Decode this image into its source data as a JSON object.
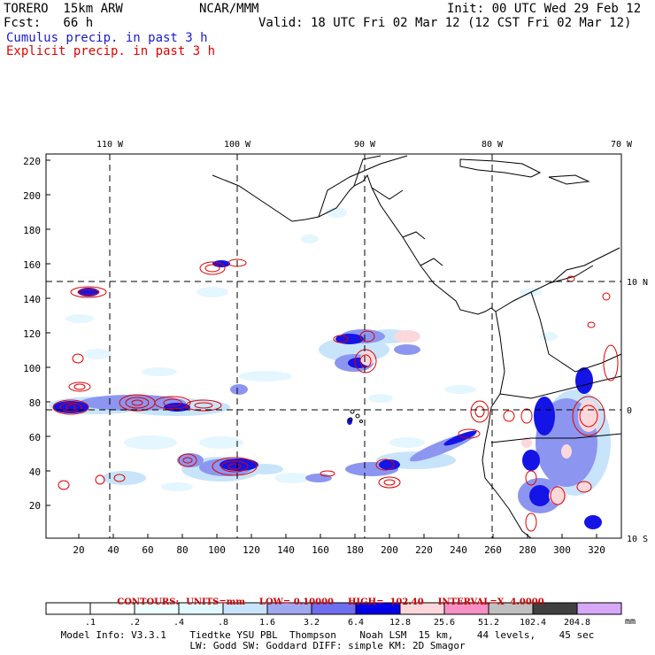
{
  "header": {
    "model": "TORERO  15km ARW",
    "org": "NCAR/MMM",
    "init": "Init: 00 UTC Wed 29 Feb 12",
    "fcst": "Fcst:   66 h",
    "valid": "Valid: 18 UTC Fri 02 Mar 12 (12 CST Fri 02 Mar 12)",
    "cumulus_label": "Cumulus precip. in past 3 h",
    "explicit_label": "Explicit precip. in past 3 h"
  },
  "colors": {
    "cumulus_text": "#1a1acc",
    "explicit_text": "#e00000",
    "explicit_contour": "#e00000",
    "land_outline": "#000000"
  },
  "map": {
    "longitude_labels": [
      "110 W",
      "100 W",
      "90 W",
      "80 W",
      "70 W"
    ],
    "latitude_labels": [
      "10 N",
      "0",
      "10 S"
    ],
    "y_ticks": [
      "20",
      "40",
      "60",
      "80",
      "100",
      "120",
      "140",
      "160",
      "180",
      "200",
      "220"
    ],
    "x_ticks": [
      "20",
      "40",
      "60",
      "80",
      "100",
      "120",
      "140",
      "160",
      "180",
      "200",
      "220",
      "240",
      "260",
      "280",
      "300",
      "320"
    ]
  },
  "contours": {
    "title": "CONTOURS:",
    "units": "UNITS=mm",
    "low": "LOW= 0.10000",
    "high": "HIGH=  102.40",
    "interval": "INTERVAL=X  4.0000"
  },
  "colorbar": {
    "unit": "mm",
    "labels": [
      ".1",
      ".2",
      ".4",
      ".8",
      "1.6",
      "3.2",
      "6.4",
      "12.8",
      "25.6",
      "51.2",
      "102.4",
      "204.8"
    ],
    "colors": [
      "#ffffff",
      "#ffffff",
      "#eeffff",
      "#e0f8ff",
      "#c8e4fa",
      "#a0a8f0",
      "#6e6ef0",
      "#0000e6",
      "#fcd8dc",
      "#f890c4",
      "#c0c0c0",
      "#404040",
      "#d8a8f8"
    ]
  },
  "model_info": {
    "line1": "Model Info: V3.3.1    Tiedtke YSU PBL  Thompson    Noah LSM  15 km,    44 levels,    45 sec",
    "line2": "LW: Godd SW: Goddard DIFF: simple KM: 2D Smagor"
  }
}
